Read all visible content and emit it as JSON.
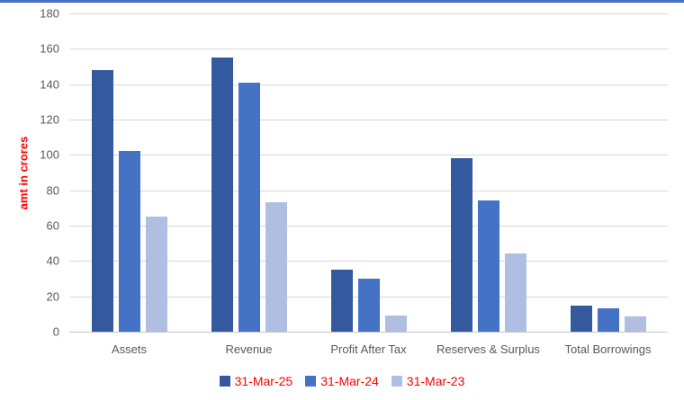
{
  "page": {
    "top_border_color": "#4472C4",
    "background_color": "#FFFFFF"
  },
  "chart_data": {
    "type": "bar",
    "title": "",
    "xlabel": "",
    "ylabel": "amt in crores",
    "ylabel_color": "#FF0000",
    "ylim": [
      0,
      180
    ],
    "ytick_step": 20,
    "grid": true,
    "gridline_color": "#D9D9D9",
    "axis_line_color": "#C6C6C6",
    "axis_text_color": "#595959",
    "legend_position": "bottom",
    "legend_text_color": "#FF0000",
    "categories": [
      "Assets",
      "Revenue",
      "Profit After Tax",
      "Reserves & Surplus",
      "Total Borrowings"
    ],
    "series": [
      {
        "name": "31-Mar-25",
        "color": "#35599E",
        "values": [
          148,
          155,
          35,
          98,
          14.5
        ]
      },
      {
        "name": "31-Mar-24",
        "color": "#4472C4",
        "values": [
          102,
          141,
          30,
          74,
          13
        ]
      },
      {
        "name": "31-Mar-23",
        "color": "#AFBEE1",
        "values": [
          65,
          73,
          9,
          44,
          8.5
        ]
      }
    ]
  }
}
